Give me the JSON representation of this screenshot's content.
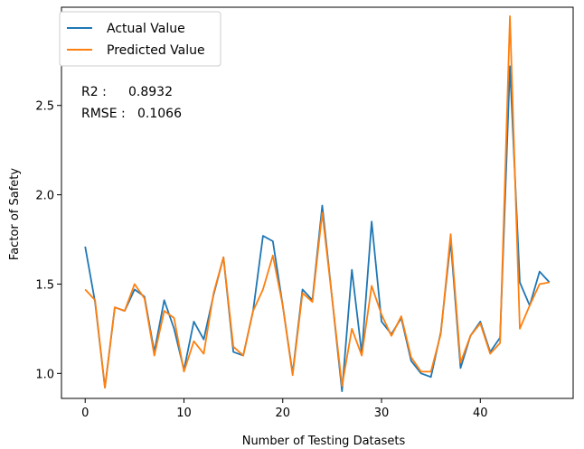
{
  "chart_data": {
    "type": "line",
    "title": "",
    "xlabel": "Number of Testing Datasets",
    "ylabel": "Factor of Safety",
    "xlim": [
      -2.4,
      49.4
    ],
    "ylim": [
      0.86,
      3.05
    ],
    "x_ticks": [
      0,
      10,
      20,
      30,
      40
    ],
    "y_ticks": [
      1.0,
      1.5,
      2.0,
      2.5
    ],
    "y_tick_labels": [
      "1.0",
      "1.5",
      "2.0",
      "2.5"
    ],
    "grid": false,
    "legend": "top-left",
    "annotations": [
      {
        "label": "R2 :",
        "value": "0.8932"
      },
      {
        "label": "RMSE :",
        "value": "0.1066"
      }
    ],
    "x": [
      0,
      1,
      2,
      3,
      4,
      5,
      6,
      7,
      8,
      9,
      10,
      11,
      12,
      13,
      14,
      15,
      16,
      17,
      18,
      19,
      20,
      21,
      22,
      23,
      24,
      25,
      26,
      27,
      28,
      29,
      30,
      31,
      32,
      33,
      34,
      35,
      36,
      37,
      38,
      39,
      40,
      41,
      42,
      43,
      44,
      45,
      46,
      47
    ],
    "series": [
      {
        "name": "Actual Value",
        "color": "#1f77b4",
        "values": [
          1.71,
          1.4,
          0.92,
          1.37,
          1.35,
          1.47,
          1.43,
          1.12,
          1.41,
          1.25,
          1.02,
          1.29,
          1.19,
          1.44,
          1.65,
          1.12,
          1.1,
          1.35,
          1.77,
          1.74,
          1.38,
          1.0,
          1.47,
          1.41,
          1.94,
          1.42,
          0.9,
          1.58,
          1.11,
          1.85,
          1.29,
          1.22,
          1.31,
          1.07,
          1.0,
          0.98,
          1.23,
          1.74,
          1.03,
          1.21,
          1.29,
          1.12,
          1.2,
          2.72,
          1.51,
          1.38,
          1.57,
          1.51
        ]
      },
      {
        "name": "Predicted Value",
        "color": "#ff7f0e",
        "values": [
          1.47,
          1.41,
          0.92,
          1.37,
          1.35,
          1.5,
          1.42,
          1.1,
          1.35,
          1.31,
          1.01,
          1.18,
          1.11,
          1.45,
          1.65,
          1.15,
          1.1,
          1.35,
          1.47,
          1.66,
          1.38,
          0.99,
          1.45,
          1.4,
          1.9,
          1.42,
          0.93,
          1.25,
          1.1,
          1.49,
          1.33,
          1.21,
          1.32,
          1.09,
          1.01,
          1.01,
          1.22,
          1.78,
          1.06,
          1.21,
          1.28,
          1.11,
          1.17,
          3.0,
          1.25,
          1.38,
          1.5,
          1.51
        ]
      }
    ]
  }
}
